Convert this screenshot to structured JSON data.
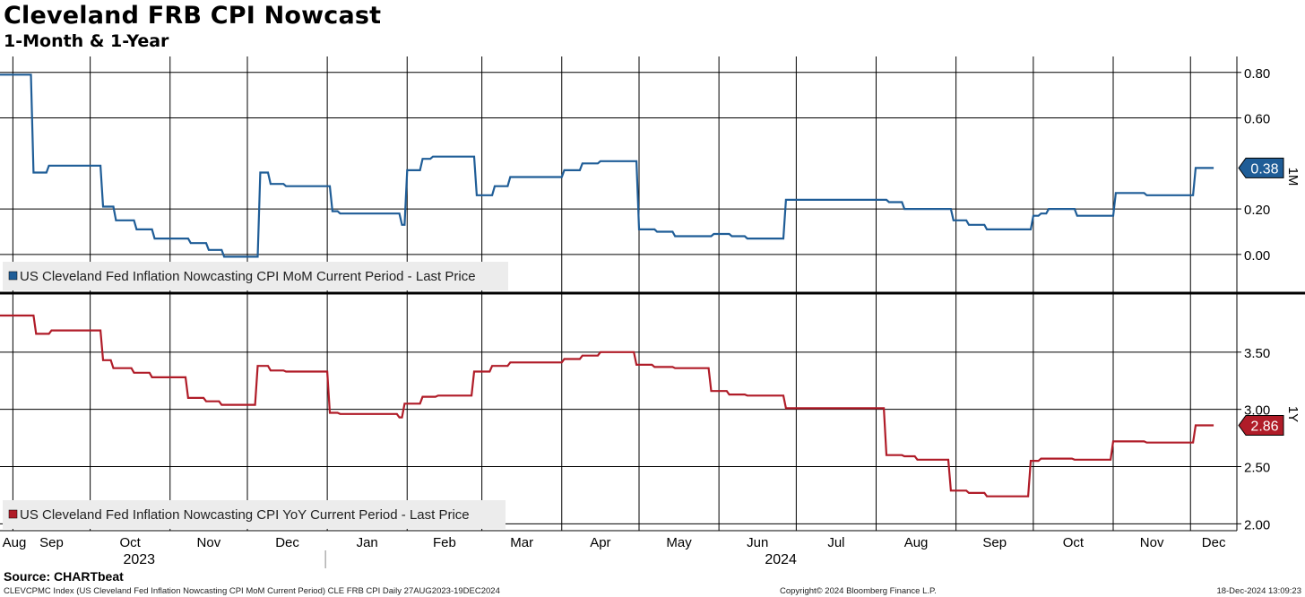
{
  "header": {
    "title": "Cleveland FRB CPI Nowcast",
    "subtitle": "1-Month & 1-Year"
  },
  "footer": {
    "source": "Source: CHARTbeat",
    "description": "CLEVCPMC Index (US Cleveland Fed Inflation Nowcasting CPI MoM Current Period) CLE FRB CPI  Daily 27AUG2023-19DEC2024",
    "copyright": "Copyright© 2024 Bloomberg Finance L.P.",
    "timestamp": "18-Dec-2024 13:09:23"
  },
  "colors": {
    "mom": "#1f5d97",
    "yoy": "#b01c28",
    "grid": "#000000",
    "legend_bg": "#ececec"
  },
  "chart_data": [
    {
      "type": "line",
      "panel": "top",
      "series_name": "US Cleveland Fed Inflation Nowcasting CPI MoM Current Period - Last Price",
      "axis_label": "1M",
      "last_value_label": "0.38",
      "ylim": [
        -0.17,
        0.87
      ],
      "yticks": [
        0.8,
        0.6,
        0.2,
        0.0
      ],
      "ytick_labels": [
        "0.80",
        "0.60",
        "0.20",
        "0.00"
      ],
      "x_range": [
        "2023-08-27",
        "2024-12-19"
      ],
      "points": [
        [
          "2023-08-27",
          0.79
        ],
        [
          "2023-09-08",
          0.79
        ],
        [
          "2023-09-09",
          0.36
        ],
        [
          "2023-09-14",
          0.36
        ],
        [
          "2023-09-15",
          0.39
        ],
        [
          "2023-10-05",
          0.39
        ],
        [
          "2023-10-06",
          0.21
        ],
        [
          "2023-10-10",
          0.21
        ],
        [
          "2023-10-11",
          0.15
        ],
        [
          "2023-10-18",
          0.15
        ],
        [
          "2023-10-19",
          0.11
        ],
        [
          "2023-10-25",
          0.11
        ],
        [
          "2023-10-26",
          0.07
        ],
        [
          "2023-11-08",
          0.07
        ],
        [
          "2023-11-09",
          0.05
        ],
        [
          "2023-11-15",
          0.05
        ],
        [
          "2023-11-16",
          0.02
        ],
        [
          "2023-11-21",
          0.02
        ],
        [
          "2023-11-22",
          -0.01
        ],
        [
          "2023-12-05",
          -0.01
        ],
        [
          "2023-12-06",
          0.36
        ],
        [
          "2023-12-09",
          0.36
        ],
        [
          "2023-12-10",
          0.31
        ],
        [
          "2023-12-15",
          0.31
        ],
        [
          "2023-12-16",
          0.3
        ],
        [
          "2024-01-02",
          0.3
        ],
        [
          "2024-01-03",
          0.19
        ],
        [
          "2024-01-05",
          0.19
        ],
        [
          "2024-01-06",
          0.18
        ],
        [
          "2024-01-29",
          0.18
        ],
        [
          "2024-01-30",
          0.13
        ],
        [
          "2024-01-31",
          0.13
        ],
        [
          "2024-02-01",
          0.37
        ],
        [
          "2024-02-06",
          0.37
        ],
        [
          "2024-02-07",
          0.42
        ],
        [
          "2024-02-10",
          0.42
        ],
        [
          "2024-02-11",
          0.43
        ],
        [
          "2024-02-27",
          0.43
        ],
        [
          "2024-02-28",
          0.26
        ],
        [
          "2024-03-05",
          0.26
        ],
        [
          "2024-03-06",
          0.3
        ],
        [
          "2024-03-11",
          0.3
        ],
        [
          "2024-03-12",
          0.34
        ],
        [
          "2024-04-01",
          0.34
        ],
        [
          "2024-04-02",
          0.37
        ],
        [
          "2024-04-08",
          0.37
        ],
        [
          "2024-04-09",
          0.4
        ],
        [
          "2024-04-15",
          0.4
        ],
        [
          "2024-04-16",
          0.41
        ],
        [
          "2024-04-30",
          0.41
        ],
        [
          "2024-05-01",
          0.11
        ],
        [
          "2024-05-07",
          0.11
        ],
        [
          "2024-05-08",
          0.1
        ],
        [
          "2024-05-14",
          0.1
        ],
        [
          "2024-05-15",
          0.08
        ],
        [
          "2024-05-29",
          0.08
        ],
        [
          "2024-05-30",
          0.09
        ],
        [
          "2024-06-05",
          0.09
        ],
        [
          "2024-06-06",
          0.08
        ],
        [
          "2024-06-11",
          0.08
        ],
        [
          "2024-06-12",
          0.07
        ],
        [
          "2024-06-26",
          0.07
        ],
        [
          "2024-06-27",
          0.24
        ],
        [
          "2024-08-05",
          0.24
        ],
        [
          "2024-08-06",
          0.23
        ],
        [
          "2024-08-11",
          0.23
        ],
        [
          "2024-08-12",
          0.2
        ],
        [
          "2024-08-30",
          0.2
        ],
        [
          "2024-08-31",
          0.15
        ],
        [
          "2024-09-05",
          0.15
        ],
        [
          "2024-09-06",
          0.13
        ],
        [
          "2024-09-12",
          0.13
        ],
        [
          "2024-09-13",
          0.11
        ],
        [
          "2024-09-30",
          0.11
        ],
        [
          "2024-10-01",
          0.17
        ],
        [
          "2024-10-03",
          0.17
        ],
        [
          "2024-10-04",
          0.18
        ],
        [
          "2024-10-06",
          0.18
        ],
        [
          "2024-10-07",
          0.2
        ],
        [
          "2024-10-17",
          0.2
        ],
        [
          "2024-10-18",
          0.17
        ],
        [
          "2024-11-01",
          0.17
        ],
        [
          "2024-11-02",
          0.27
        ],
        [
          "2024-11-13",
          0.27
        ],
        [
          "2024-11-14",
          0.26
        ],
        [
          "2024-12-02",
          0.26
        ],
        [
          "2024-12-03",
          0.38
        ],
        [
          "2024-12-10",
          0.38
        ]
      ]
    },
    {
      "type": "line",
      "panel": "bottom",
      "series_name": "US Cleveland Fed Inflation Nowcasting CPI YoY Current Period - Last Price",
      "axis_label": "1Y",
      "last_value_label": "2.86",
      "ylim": [
        1.94,
        4.0
      ],
      "yticks": [
        3.5,
        3.0,
        2.5,
        2.0
      ],
      "ytick_labels": [
        "3.50",
        "3.00",
        "2.50",
        "2.00"
      ],
      "x_range": [
        "2023-08-27",
        "2024-12-19"
      ],
      "points": [
        [
          "2023-08-27",
          3.82
        ],
        [
          "2023-09-09",
          3.82
        ],
        [
          "2023-09-10",
          3.66
        ],
        [
          "2023-09-15",
          3.66
        ],
        [
          "2023-09-16",
          3.69
        ],
        [
          "2023-10-05",
          3.69
        ],
        [
          "2023-10-06",
          3.43
        ],
        [
          "2023-10-09",
          3.43
        ],
        [
          "2023-10-10",
          3.36
        ],
        [
          "2023-10-17",
          3.36
        ],
        [
          "2023-10-18",
          3.32
        ],
        [
          "2023-10-24",
          3.32
        ],
        [
          "2023-10-25",
          3.28
        ],
        [
          "2023-11-07",
          3.28
        ],
        [
          "2023-11-08",
          3.1
        ],
        [
          "2023-11-14",
          3.1
        ],
        [
          "2023-11-15",
          3.07
        ],
        [
          "2023-11-20",
          3.07
        ],
        [
          "2023-11-21",
          3.04
        ],
        [
          "2023-12-04",
          3.04
        ],
        [
          "2023-12-05",
          3.38
        ],
        [
          "2023-12-09",
          3.38
        ],
        [
          "2023-12-10",
          3.34
        ],
        [
          "2023-12-15",
          3.34
        ],
        [
          "2023-12-16",
          3.33
        ],
        [
          "2024-01-01",
          3.33
        ],
        [
          "2024-01-02",
          2.97
        ],
        [
          "2024-01-05",
          2.97
        ],
        [
          "2024-01-06",
          2.96
        ],
        [
          "2024-01-28",
          2.96
        ],
        [
          "2024-01-29",
          2.93
        ],
        [
          "2024-01-30",
          2.93
        ],
        [
          "2024-01-31",
          3.05
        ],
        [
          "2024-02-06",
          3.05
        ],
        [
          "2024-02-07",
          3.11
        ],
        [
          "2024-02-12",
          3.11
        ],
        [
          "2024-02-13",
          3.12
        ],
        [
          "2024-02-26",
          3.12
        ],
        [
          "2024-02-27",
          3.33
        ],
        [
          "2024-03-04",
          3.33
        ],
        [
          "2024-03-05",
          3.38
        ],
        [
          "2024-03-11",
          3.38
        ],
        [
          "2024-03-12",
          3.41
        ],
        [
          "2024-04-01",
          3.41
        ],
        [
          "2024-04-02",
          3.44
        ],
        [
          "2024-04-08",
          3.44
        ],
        [
          "2024-04-09",
          3.47
        ],
        [
          "2024-04-15",
          3.47
        ],
        [
          "2024-04-16",
          3.5
        ],
        [
          "2024-04-29",
          3.5
        ],
        [
          "2024-04-30",
          3.39
        ],
        [
          "2024-05-06",
          3.39
        ],
        [
          "2024-05-07",
          3.37
        ],
        [
          "2024-05-14",
          3.37
        ],
        [
          "2024-05-15",
          3.36
        ],
        [
          "2024-05-28",
          3.36
        ],
        [
          "2024-05-29",
          3.16
        ],
        [
          "2024-06-04",
          3.16
        ],
        [
          "2024-06-05",
          3.13
        ],
        [
          "2024-06-11",
          3.13
        ],
        [
          "2024-06-12",
          3.12
        ],
        [
          "2024-06-26",
          3.12
        ],
        [
          "2024-06-27",
          3.01
        ],
        [
          "2024-08-04",
          3.01
        ],
        [
          "2024-08-05",
          2.6
        ],
        [
          "2024-08-11",
          2.6
        ],
        [
          "2024-08-12",
          2.59
        ],
        [
          "2024-08-16",
          2.59
        ],
        [
          "2024-08-17",
          2.56
        ],
        [
          "2024-08-29",
          2.56
        ],
        [
          "2024-08-30",
          2.29
        ],
        [
          "2024-09-05",
          2.29
        ],
        [
          "2024-09-06",
          2.27
        ],
        [
          "2024-09-12",
          2.27
        ],
        [
          "2024-09-13",
          2.24
        ],
        [
          "2024-09-29",
          2.24
        ],
        [
          "2024-09-30",
          2.55
        ],
        [
          "2024-10-03",
          2.55
        ],
        [
          "2024-10-04",
          2.57
        ],
        [
          "2024-10-16",
          2.57
        ],
        [
          "2024-10-17",
          2.56
        ],
        [
          "2024-10-31",
          2.56
        ],
        [
          "2024-11-01",
          2.72
        ],
        [
          "2024-11-13",
          2.72
        ],
        [
          "2024-11-14",
          2.71
        ],
        [
          "2024-12-02",
          2.71
        ],
        [
          "2024-12-03",
          2.86
        ],
        [
          "2024-12-10",
          2.86
        ]
      ]
    }
  ],
  "x_axis": {
    "month_labels": [
      "Aug",
      "Sep",
      "Oct",
      "Nov",
      "Dec",
      "Jan",
      "Feb",
      "Mar",
      "Apr",
      "May",
      "Jun",
      "Jul",
      "Aug",
      "Sep",
      "Oct",
      "Nov",
      "Dec"
    ],
    "month_starts": [
      "2023-08-01",
      "2023-09-01",
      "2023-10-01",
      "2023-11-01",
      "2023-12-01",
      "2024-01-01",
      "2024-02-01",
      "2024-03-01",
      "2024-04-01",
      "2024-05-01",
      "2024-06-01",
      "2024-07-01",
      "2024-08-01",
      "2024-09-01",
      "2024-10-01",
      "2024-11-01",
      "2024-12-01"
    ],
    "year_labels": [
      {
        "label": "2023",
        "center": "2023-10-20"
      },
      {
        "label": "2024",
        "center": "2024-06-25"
      }
    ],
    "year_divider": "2024-01-01"
  }
}
